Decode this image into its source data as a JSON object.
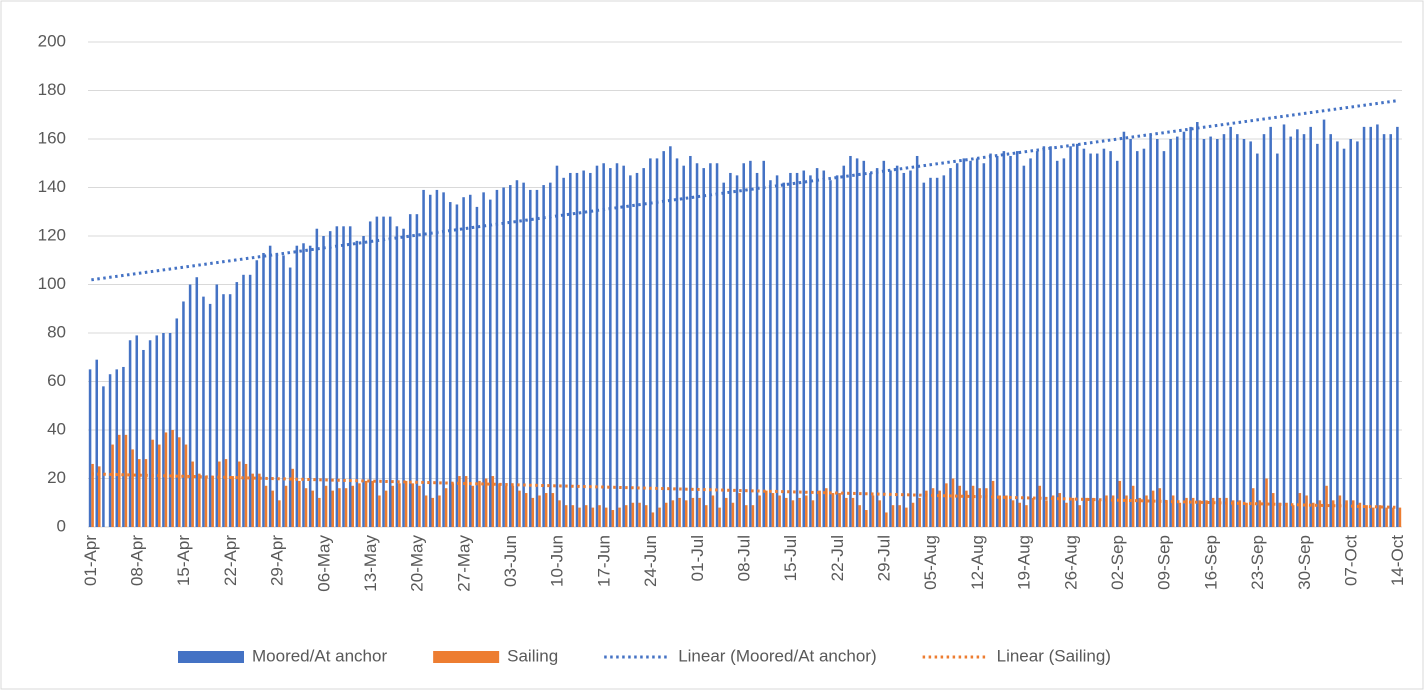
{
  "chart_data": {
    "type": "bar",
    "categories": [
      "01-Apr",
      null,
      null,
      null,
      null,
      null,
      null,
      "08-Apr",
      null,
      null,
      null,
      null,
      null,
      null,
      "15-Apr",
      null,
      null,
      null,
      null,
      null,
      null,
      "22-Apr",
      null,
      null,
      null,
      null,
      null,
      null,
      "29-Apr",
      null,
      null,
      null,
      null,
      null,
      null,
      "06-May",
      null,
      null,
      null,
      null,
      null,
      null,
      "13-May",
      null,
      null,
      null,
      null,
      null,
      null,
      "20-May",
      null,
      null,
      null,
      null,
      null,
      null,
      "27-May",
      null,
      null,
      null,
      null,
      null,
      null,
      "03-Jun",
      null,
      null,
      null,
      null,
      null,
      null,
      "10-Jun",
      null,
      null,
      null,
      null,
      null,
      null,
      "17-Jun",
      null,
      null,
      null,
      null,
      null,
      null,
      "24-Jun",
      null,
      null,
      null,
      null,
      null,
      null,
      "01-Jul",
      null,
      null,
      null,
      null,
      null,
      null,
      "08-Jul",
      null,
      null,
      null,
      null,
      null,
      null,
      "15-Jul",
      null,
      null,
      null,
      null,
      null,
      null,
      "22-Jul",
      null,
      null,
      null,
      null,
      null,
      null,
      "29-Jul",
      null,
      null,
      null,
      null,
      null,
      null,
      "05-Aug",
      null,
      null,
      null,
      null,
      null,
      null,
      "12-Aug",
      null,
      null,
      null,
      null,
      null,
      null,
      "19-Aug",
      null,
      null,
      null,
      null,
      null,
      null,
      "26-Aug",
      null,
      null,
      null,
      null,
      null,
      null,
      "02-Sep",
      null,
      null,
      null,
      null,
      null,
      null,
      "09-Sep",
      null,
      null,
      null,
      null,
      null,
      null,
      "16-Sep",
      null,
      null,
      null,
      null,
      null,
      null,
      "23-Sep",
      null,
      null,
      null,
      null,
      null,
      null,
      "30-Sep",
      null,
      null,
      null,
      null,
      null,
      null,
      "07-Oct",
      null,
      null,
      null,
      null,
      null,
      null,
      "14-Oct"
    ],
    "series": [
      {
        "name": "Moored/At anchor",
        "color": "#4472c4",
        "values": [
          65,
          69,
          58,
          63,
          65,
          66,
          77,
          79,
          73,
          77,
          79,
          80,
          80,
          86,
          93,
          100,
          103,
          95,
          92,
          100,
          96,
          96,
          101,
          104,
          104,
          110,
          113,
          116,
          113,
          112,
          107,
          116,
          117,
          116,
          123,
          120,
          122,
          124,
          124,
          124,
          118,
          120,
          126,
          128,
          128,
          128,
          124,
          123,
          129,
          129,
          139,
          137,
          139,
          138,
          134,
          133,
          136,
          137,
          132,
          138,
          135,
          139,
          140,
          141,
          143,
          142,
          139,
          139,
          141,
          142,
          149,
          144,
          146,
          146,
          147,
          146,
          149,
          150,
          148,
          150,
          149,
          145,
          146,
          148,
          152,
          152,
          155,
          157,
          152,
          149,
          153,
          150,
          148,
          150,
          150,
          142,
          146,
          145,
          150,
          151,
          146,
          151,
          143,
          145,
          142,
          146,
          146,
          147,
          145,
          148,
          147,
          143,
          145,
          149,
          153,
          152,
          151,
          146,
          148,
          151,
          147,
          149,
          146,
          147,
          153,
          142,
          144,
          144,
          145,
          148,
          150,
          152,
          151,
          152,
          150,
          154,
          153,
          155,
          153,
          155,
          149,
          152,
          155,
          157,
          157,
          151,
          152,
          157,
          158,
          156,
          154,
          154,
          156,
          155,
          151,
          163,
          160,
          155,
          156,
          162,
          160,
          155,
          160,
          161,
          163,
          165,
          167,
          160,
          161,
          160,
          162,
          165,
          162,
          160,
          159,
          154,
          162,
          165,
          154,
          166,
          161,
          164,
          162,
          165,
          158,
          168,
          162,
          159,
          156,
          160,
          159,
          165,
          165,
          166,
          162,
          162,
          165
        ]
      },
      {
        "name": "Sailing",
        "color": "#ed7d31",
        "values": [
          26,
          25,
          0,
          34,
          38,
          38,
          32,
          28,
          28,
          36,
          34,
          39,
          40,
          37,
          34,
          27,
          22,
          21,
          21,
          27,
          28,
          21,
          27,
          26,
          22,
          22,
          17,
          15,
          11,
          17,
          24,
          19,
          16,
          15,
          12,
          17,
          15,
          16,
          16,
          17,
          18,
          19,
          19,
          13,
          15,
          17,
          18,
          19,
          18,
          17,
          13,
          12,
          13,
          16,
          18,
          21,
          21,
          17,
          19,
          20,
          21,
          18,
          17,
          17,
          15,
          14,
          12,
          13,
          14,
          14,
          11,
          9,
          9,
          8,
          9,
          8,
          9,
          8,
          7,
          8,
          9,
          10,
          10,
          9,
          6,
          8,
          10,
          11,
          12,
          11,
          12,
          12,
          9,
          13,
          8,
          12,
          10,
          14,
          9,
          9,
          13,
          15,
          14,
          13,
          12,
          11,
          12,
          13,
          11,
          15,
          16,
          14,
          14,
          12,
          12,
          9,
          7,
          13,
          11,
          6,
          9,
          9,
          8,
          10,
          12,
          15,
          16,
          15,
          18,
          20,
          17,
          15,
          17,
          16,
          16,
          19,
          13,
          13,
          11,
          10,
          9,
          12,
          17,
          11,
          13,
          14,
          10,
          12,
          9,
          12,
          12,
          11,
          13,
          13,
          19,
          13,
          17,
          12,
          13,
          15,
          16,
          11,
          13,
          10,
          12,
          12,
          11,
          11,
          12,
          12,
          12,
          11,
          11,
          10,
          16,
          11,
          20,
          14,
          10,
          10,
          9,
          14,
          13,
          10,
          11,
          17,
          11,
          13,
          11,
          11,
          10,
          9,
          8,
          9,
          8,
          8,
          8
        ]
      }
    ],
    "trendlines": [
      {
        "name": "Linear (Moored/At anchor)",
        "of": 0,
        "color": "#4472c4",
        "style": "dotted"
      },
      {
        "name": "Linear (Sailing)",
        "of": 1,
        "color": "#ed7d31",
        "style": "dotted"
      }
    ],
    "ylim": [
      0,
      200
    ],
    "yticks": [
      0,
      20,
      40,
      60,
      80,
      100,
      120,
      140,
      160,
      180,
      200
    ],
    "grid": true,
    "legend": "bottom"
  }
}
